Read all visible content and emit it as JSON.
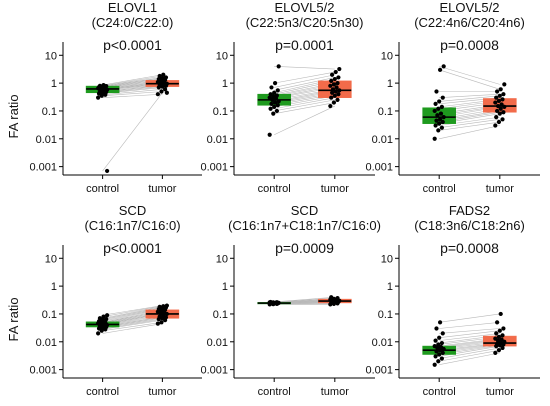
{
  "y_axis_label": "FA ratio",
  "colors": {
    "control": "#1e9a1e",
    "tumor": "#f26b4a",
    "pairline": "#b9b9b9",
    "point": "#000000"
  },
  "chart_data": [
    {
      "type": "boxplot",
      "title": [
        "ELOVL1",
        "(C24:0/C22:0)"
      ],
      "pvalue": "p<0.0001",
      "ylabel": "FA ratio",
      "yscale": "log",
      "ylim": [
        0.0005,
        30
      ],
      "yticks": [
        "10",
        "1",
        "0.1",
        "0.01",
        "0.001"
      ],
      "categories": [
        "control",
        "tumor"
      ],
      "boxes": [
        {
          "q1": 0.45,
          "median": 0.62,
          "q3": 0.78,
          "points": [
            0.3,
            0.35,
            0.38,
            0.42,
            0.45,
            0.48,
            0.5,
            0.55,
            0.58,
            0.6,
            0.62,
            0.65,
            0.68,
            0.7,
            0.72,
            0.75,
            0.78,
            0.8,
            0.85,
            0.0007
          ]
        },
        {
          "q1": 0.75,
          "median": 0.95,
          "q3": 1.25,
          "points": [
            0.4,
            0.5,
            0.6,
            0.7,
            0.75,
            0.8,
            0.85,
            0.9,
            0.95,
            1.0,
            1.05,
            1.1,
            1.2,
            1.3,
            1.4,
            1.5,
            1.6,
            1.8,
            2.0,
            0.45
          ]
        }
      ]
    },
    {
      "type": "boxplot",
      "title": [
        "ELOVL5/2",
        "(C22:5n3/C20:5n30)"
      ],
      "pvalue": "p=0.0001",
      "yscale": "log",
      "ylim": [
        0.0005,
        30
      ],
      "yticks": [
        "10",
        "1",
        "0.1",
        "0.01",
        "0.001"
      ],
      "categories": [
        "control",
        "tumor"
      ],
      "boxes": [
        {
          "q1": 0.16,
          "median": 0.25,
          "q3": 0.4,
          "points": [
            0.014,
            0.08,
            0.1,
            0.12,
            0.14,
            0.16,
            0.18,
            0.2,
            0.22,
            0.25,
            0.28,
            0.3,
            0.33,
            0.36,
            0.4,
            0.45,
            0.55,
            0.7,
            1.0,
            4.0
          ]
        },
        {
          "q1": 0.3,
          "median": 0.55,
          "q3": 1.2,
          "points": [
            0.15,
            0.2,
            0.25,
            0.3,
            0.35,
            0.4,
            0.45,
            0.5,
            0.55,
            0.6,
            0.7,
            0.8,
            0.9,
            1.0,
            1.2,
            1.4,
            1.6,
            2.0,
            2.5,
            3.2
          ]
        }
      ]
    },
    {
      "type": "boxplot",
      "title": [
        "ELOVL5/2",
        "(C22:4n6/C20:4n6)"
      ],
      "pvalue": "p=0.0008",
      "yscale": "log",
      "ylim": [
        0.0005,
        30
      ],
      "yticks": [
        "10",
        "1",
        "0.1",
        "0.01",
        "0.001"
      ],
      "categories": [
        "control",
        "tumor"
      ],
      "boxes": [
        {
          "q1": 0.035,
          "median": 0.06,
          "q3": 0.13,
          "points": [
            0.01,
            0.02,
            0.025,
            0.03,
            0.035,
            0.04,
            0.045,
            0.05,
            0.06,
            0.07,
            0.08,
            0.1,
            0.12,
            0.14,
            0.18,
            0.22,
            0.3,
            0.5,
            3.0,
            4.0
          ]
        },
        {
          "q1": 0.09,
          "median": 0.15,
          "q3": 0.28,
          "points": [
            0.03,
            0.04,
            0.05,
            0.06,
            0.08,
            0.09,
            0.1,
            0.12,
            0.14,
            0.15,
            0.17,
            0.2,
            0.23,
            0.26,
            0.3,
            0.35,
            0.4,
            0.5,
            0.6,
            0.9
          ]
        }
      ]
    },
    {
      "type": "boxplot",
      "title": [
        "SCD",
        "(C16:1n7/C16:0)"
      ],
      "pvalue": "p<0.0001",
      "ylabel": "FA ratio",
      "yscale": "log",
      "ylim": [
        0.0005,
        30
      ],
      "yticks": [
        "10",
        "1",
        "0.1",
        "0.01",
        "0.001"
      ],
      "categories": [
        "control",
        "tumor"
      ],
      "boxes": [
        {
          "q1": 0.034,
          "median": 0.042,
          "q3": 0.052,
          "points": [
            0.02,
            0.025,
            0.028,
            0.03,
            0.032,
            0.034,
            0.036,
            0.038,
            0.04,
            0.042,
            0.044,
            0.046,
            0.048,
            0.05,
            0.055,
            0.06,
            0.065,
            0.07,
            0.08,
            0.09
          ]
        },
        {
          "q1": 0.07,
          "median": 0.1,
          "q3": 0.14,
          "points": [
            0.045,
            0.05,
            0.06,
            0.065,
            0.07,
            0.075,
            0.08,
            0.09,
            0.1,
            0.105,
            0.11,
            0.12,
            0.13,
            0.14,
            0.15,
            0.16,
            0.17,
            0.18,
            0.19,
            0.2
          ]
        }
      ]
    },
    {
      "type": "boxplot",
      "title": [
        "SCD",
        "(C16:1n7+C18:1n7/C16:0)"
      ],
      "pvalue": "p=0.0009",
      "yscale": "log",
      "ylim": [
        0.0005,
        30
      ],
      "yticks": [
        "10",
        "1",
        "0.1",
        "0.01",
        "0.001"
      ],
      "categories": [
        "control",
        "tumor"
      ],
      "boxes": [
        {
          "q1": 0.23,
          "median": 0.245,
          "q3": 0.26,
          "points": [
            0.22,
            0.225,
            0.23,
            0.235,
            0.24,
            0.24,
            0.245,
            0.245,
            0.25,
            0.25,
            0.255,
            0.26,
            0.26,
            0.265,
            0.27
          ]
        },
        {
          "q1": 0.25,
          "median": 0.29,
          "q3": 0.34,
          "points": [
            0.22,
            0.23,
            0.24,
            0.25,
            0.26,
            0.27,
            0.28,
            0.29,
            0.3,
            0.31,
            0.32,
            0.33,
            0.35,
            0.37,
            0.4
          ]
        }
      ]
    },
    {
      "type": "boxplot",
      "title": [
        "FADS2",
        "(C18:3n6/C18:2n6)"
      ],
      "pvalue": "p=0.0008",
      "yscale": "log",
      "ylim": [
        0.0005,
        30
      ],
      "yticks": [
        "10",
        "1",
        "0.1",
        "0.01",
        "0.001"
      ],
      "categories": [
        "control",
        "tumor"
      ],
      "boxes": [
        {
          "q1": 0.0035,
          "median": 0.005,
          "q3": 0.007,
          "points": [
            0.0015,
            0.002,
            0.0025,
            0.003,
            0.0035,
            0.004,
            0.0045,
            0.005,
            0.0055,
            0.006,
            0.0065,
            0.007,
            0.008,
            0.009,
            0.011,
            0.014,
            0.02,
            0.03,
            0.05
          ]
        },
        {
          "q1": 0.007,
          "median": 0.009,
          "q3": 0.016,
          "points": [
            0.004,
            0.005,
            0.006,
            0.007,
            0.0075,
            0.008,
            0.0085,
            0.009,
            0.01,
            0.011,
            0.012,
            0.013,
            0.015,
            0.017,
            0.02,
            0.025,
            0.03,
            0.05,
            0.1
          ]
        }
      ]
    }
  ]
}
